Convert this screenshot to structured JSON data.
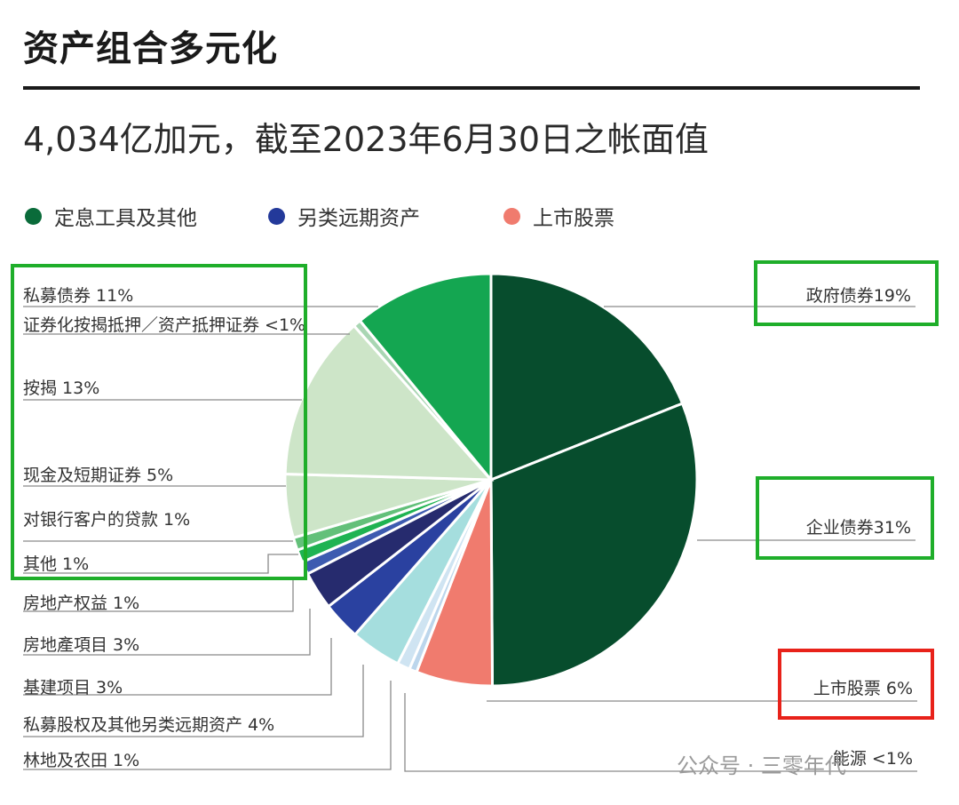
{
  "header": {
    "title": "资产组合多元化",
    "subtitle": "4,034亿加元，截至2023年6月30日之帐面值"
  },
  "legend": [
    {
      "label": "定息工具及其他",
      "color": "#0a6b3a"
    },
    {
      "label": "另类远期资产",
      "color": "#23399a"
    },
    {
      "label": "上市股票",
      "color": "#f07b6e"
    }
  ],
  "chart_data": {
    "type": "pie",
    "unit": "%",
    "slices": [
      {
        "label": "政府债券",
        "display": "19%",
        "value": 19,
        "group": "定息工具及其他",
        "color": "#074d2d"
      },
      {
        "label": "企业债券",
        "display": "31%",
        "value": 31,
        "group": "定息工具及其他",
        "color": "#074d2d"
      },
      {
        "label": "上市股票",
        "display": "6%",
        "value": 6,
        "group": "上市股票",
        "color": "#f07b6e"
      },
      {
        "label": "能源",
        "display": "<1%",
        "value": 0.6,
        "group": "另类远期资产",
        "color": "#bcd6ec"
      },
      {
        "label": "林地及农田",
        "display": "1%",
        "value": 1,
        "group": "另类远期资产",
        "color": "#cfe4f2"
      },
      {
        "label": "私募股权及其他另类远期资产",
        "display": "4%",
        "value": 4,
        "group": "另类远期资产",
        "color": "#a5dede"
      },
      {
        "label": "基建项目",
        "display": "3%",
        "value": 3,
        "group": "另类远期资产",
        "color": "#2a41a0"
      },
      {
        "label": "房地產項目",
        "display": "3%",
        "value": 3,
        "group": "另类远期资产",
        "color": "#262b6e"
      },
      {
        "label": "房地产权益",
        "display": "1%",
        "value": 1,
        "group": "另类远期资产",
        "color": "#3d5bb0"
      },
      {
        "label": "其他",
        "display": "1%",
        "value": 1,
        "group": "定息工具及其他",
        "color": "#1fb352"
      },
      {
        "label": "对银行客户的贷款",
        "display": "1%",
        "value": 1,
        "group": "定息工具及其他",
        "color": "#63c07a"
      },
      {
        "label": "现金及短期证券",
        "display": "5%",
        "value": 5,
        "group": "定息工具及其他",
        "color": "#cde5c8"
      },
      {
        "label": "按揭",
        "display": "13%",
        "value": 13,
        "group": "定息工具及其他",
        "color": "#cde5c8"
      },
      {
        "label": "证券化按揭抵押／资产抵押证券",
        "display": "<1%",
        "value": 0.6,
        "group": "定息工具及其他",
        "color": "#a9d6b3"
      },
      {
        "label": "私募债券",
        "display": "11%",
        "value": 11,
        "group": "定息工具及其他",
        "color": "#14a651"
      }
    ]
  },
  "watermark": "公众号 · 三零年代"
}
